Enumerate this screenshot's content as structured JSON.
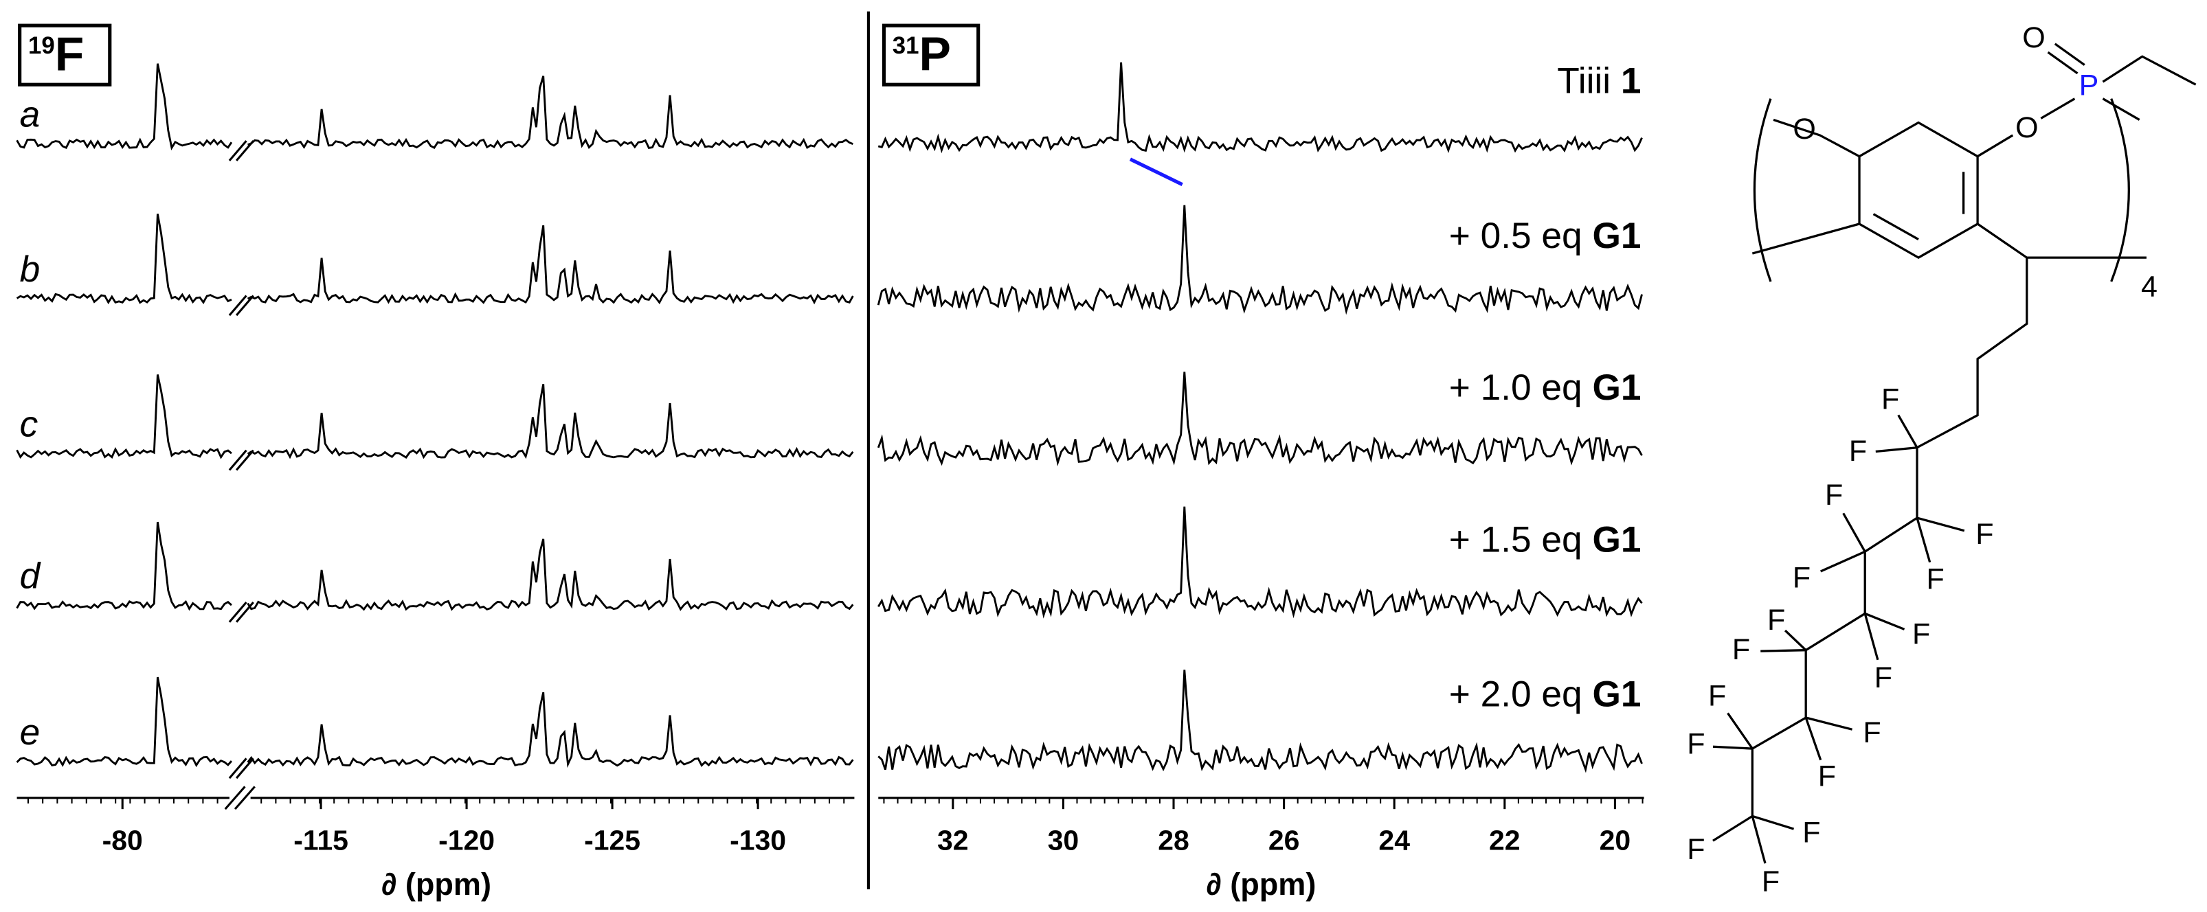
{
  "panels": [
    {
      "nucleus_mass": "19",
      "nucleus": "F",
      "axis_label": "∂ (ppm)",
      "ticks": [
        -80,
        -115,
        -120,
        -125,
        -130
      ],
      "trace_labels": [
        "a",
        "b",
        "c",
        "d",
        "e"
      ]
    },
    {
      "nucleus_mass": "31",
      "nucleus": "P",
      "axis_label": "∂ (ppm)",
      "ticks": [
        32,
        30,
        28,
        26,
        24,
        22,
        20
      ],
      "conditions": [
        {
          "text": "Tiiii",
          "bold": "1"
        },
        {
          "text": "+ 0.5 eq",
          "bold": "G1"
        },
        {
          "text": "+ 1.0 eq",
          "bold": "G1"
        },
        {
          "text": "+ 1.5 eq",
          "bold": "G1"
        },
        {
          "text": "+ 2.0 eq",
          "bold": "G1"
        }
      ]
    }
  ],
  "structure": {
    "atoms": [
      "O",
      "P",
      "O",
      "O",
      "F",
      "F",
      "F",
      "F",
      "F",
      "F",
      "F",
      "F",
      "F",
      "F",
      "F",
      "F",
      "F",
      "F",
      "F",
      "F",
      "F"
    ],
    "subscript": "4"
  }
}
